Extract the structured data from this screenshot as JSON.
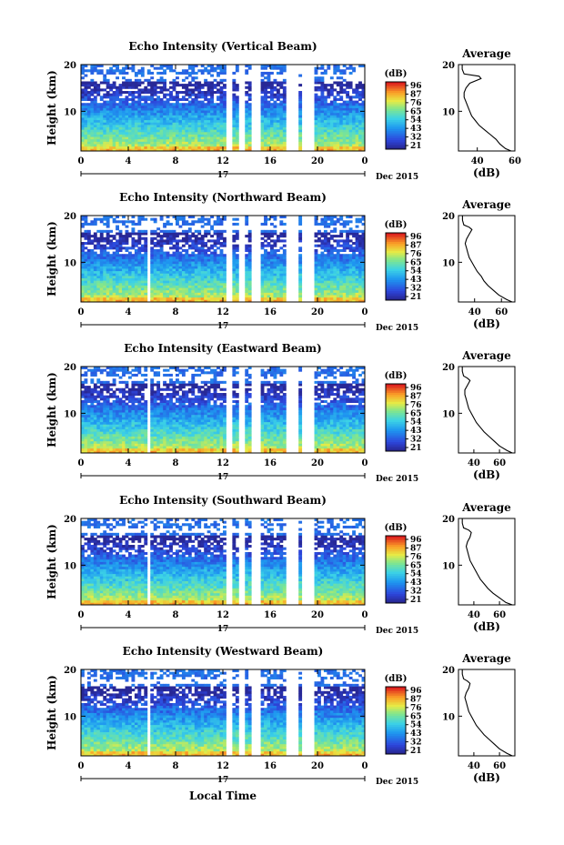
{
  "chart_data": [
    {
      "type": "heatmap",
      "title": "Echo Intensity (Vertical Beam)",
      "ylabel": "Height (km)",
      "xlim": [
        0,
        24
      ],
      "ylim": [
        1.5,
        20
      ],
      "xticks": [
        "0",
        "4",
        "8",
        "12",
        "16",
        "20",
        "0"
      ],
      "yticks": [
        "10",
        "20"
      ],
      "day_label": "17",
      "date_label": "Dec 2015",
      "colorbar": {
        "unit": "(dB)",
        "ticks": [
          "96",
          "87",
          "76",
          "65",
          "54",
          "43",
          "32",
          "21"
        ]
      },
      "gaps_hours": [
        [
          12.3,
          12.8
        ],
        [
          13.3,
          13.9
        ],
        [
          14.3,
          15.2
        ],
        [
          17.3,
          18.4
        ],
        [
          18.7,
          19.6
        ]
      ],
      "white_band_km": [
        17.0,
        17.7
      ],
      "profile": {
        "title": "Average",
        "xlabel": "(dB)",
        "xlim": [
          30,
          60
        ],
        "xticks": [
          "40",
          "60"
        ],
        "yticks": [
          "10",
          "20"
        ],
        "height_km": [
          1.5,
          2,
          3,
          4,
          5,
          6,
          7,
          8,
          9,
          10,
          11,
          12,
          13,
          14,
          15,
          16,
          17,
          17.5,
          18,
          19,
          20
        ],
        "db": [
          58,
          55,
          52,
          50,
          47,
          44,
          41,
          39,
          37,
          36,
          35,
          34,
          33,
          33,
          34,
          36,
          42,
          41,
          33,
          32,
          32
        ]
      }
    },
    {
      "type": "heatmap",
      "title": "Echo Intensity (Northward Beam)",
      "ylabel": "Height (km)",
      "xlim": [
        0,
        24
      ],
      "ylim": [
        1.5,
        20
      ],
      "xticks": [
        "0",
        "4",
        "8",
        "12",
        "16",
        "20",
        "0"
      ],
      "yticks": [
        "10",
        "20"
      ],
      "day_label": "17",
      "date_label": "Dec 2015",
      "colorbar": {
        "unit": "(dB)",
        "ticks": [
          "96",
          "87",
          "76",
          "65",
          "54",
          "43",
          "32",
          "21"
        ]
      },
      "gaps_hours": [
        [
          5.7,
          5.9
        ],
        [
          12.3,
          12.8
        ],
        [
          13.3,
          13.9
        ],
        [
          14.3,
          15.2
        ],
        [
          17.3,
          18.4
        ],
        [
          18.7,
          19.6
        ]
      ],
      "white_band_km": [
        17.0,
        17.7
      ],
      "profile": {
        "title": "Average",
        "xlabel": "(dB)",
        "xlim": [
          28,
          70
        ],
        "xticks": [
          "40",
          "60"
        ],
        "yticks": [
          "10",
          "20"
        ],
        "height_km": [
          1.5,
          2,
          3,
          4,
          5,
          6,
          7,
          8,
          9,
          10,
          11,
          12,
          13,
          14,
          15,
          16,
          17,
          17.5,
          18,
          19,
          20
        ],
        "db": [
          68,
          64,
          58,
          54,
          50,
          47,
          45,
          42,
          40,
          38,
          36,
          35,
          34,
          33,
          34,
          36,
          38,
          36,
          32,
          31,
          31
        ]
      }
    },
    {
      "type": "heatmap",
      "title": "Echo Intensity (Eastward Beam)",
      "ylabel": "Height (km)",
      "xlim": [
        0,
        24
      ],
      "ylim": [
        1.5,
        20
      ],
      "xticks": [
        "0",
        "4",
        "8",
        "12",
        "16",
        "20",
        "0"
      ],
      "yticks": [
        "10",
        "20"
      ],
      "day_label": "17",
      "date_label": "Dec 2015",
      "colorbar": {
        "unit": "(dB)",
        "ticks": [
          "96",
          "87",
          "76",
          "65",
          "54",
          "43",
          "32",
          "21"
        ]
      },
      "gaps_hours": [
        [
          5.7,
          5.9
        ],
        [
          12.3,
          12.8
        ],
        [
          13.3,
          13.9
        ],
        [
          14.3,
          15.2
        ],
        [
          17.3,
          18.4
        ],
        [
          18.7,
          19.6
        ]
      ],
      "white_band_km": [
        17.0,
        17.7
      ],
      "profile": {
        "title": "Average",
        "xlabel": "(dB)",
        "xlim": [
          28,
          72
        ],
        "xticks": [
          "40",
          "60"
        ],
        "yticks": [
          "10",
          "20"
        ],
        "height_km": [
          1.5,
          2,
          3,
          4,
          5,
          6,
          7,
          8,
          9,
          10,
          11,
          12,
          13,
          14,
          15,
          16,
          17,
          17.5,
          18,
          19,
          20
        ],
        "db": [
          70,
          66,
          60,
          56,
          52,
          48,
          45,
          42,
          40,
          38,
          36,
          35,
          34,
          33,
          33,
          35,
          37,
          35,
          32,
          31,
          31
        ]
      }
    },
    {
      "type": "heatmap",
      "title": "Echo Intensity (Southward Beam)",
      "ylabel": "Height (km)",
      "xlim": [
        0,
        24
      ],
      "ylim": [
        1.5,
        20
      ],
      "xticks": [
        "0",
        "4",
        "8",
        "12",
        "16",
        "20",
        "0"
      ],
      "yticks": [
        "10",
        "20"
      ],
      "day_label": "17",
      "date_label": "Dec 2015",
      "colorbar": {
        "unit": "(dB)",
        "ticks": [
          "96",
          "87",
          "76",
          "65",
          "54",
          "43",
          "32",
          "21"
        ]
      },
      "gaps_hours": [
        [
          5.7,
          5.9
        ],
        [
          12.3,
          12.8
        ],
        [
          13.3,
          13.9
        ],
        [
          14.3,
          15.2
        ],
        [
          17.3,
          18.4
        ],
        [
          18.7,
          19.6
        ]
      ],
      "white_band_km": [
        17.0,
        17.7
      ],
      "profile": {
        "title": "Average",
        "xlabel": "(dB)",
        "xlim": [
          28,
          72
        ],
        "xticks": [
          "40",
          "60"
        ],
        "yticks": [
          "10",
          "20"
        ],
        "height_km": [
          1.5,
          2,
          3,
          4,
          5,
          6,
          7,
          8,
          9,
          10,
          11,
          12,
          13,
          14,
          15,
          16,
          17,
          17.5,
          18,
          19,
          20
        ],
        "db": [
          70,
          65,
          60,
          55,
          51,
          48,
          45,
          43,
          41,
          39,
          37,
          36,
          35,
          34,
          35,
          37,
          38,
          36,
          32,
          31,
          31
        ]
      }
    },
    {
      "type": "heatmap",
      "title": "Echo Intensity (Westward Beam)",
      "ylabel": "Height (km)",
      "xlim": [
        0,
        24
      ],
      "ylim": [
        1.5,
        20
      ],
      "xticks": [
        "0",
        "4",
        "8",
        "12",
        "16",
        "20",
        "0"
      ],
      "yticks": [
        "10",
        "20"
      ],
      "day_label": "17",
      "date_label": "Dec 2015",
      "colorbar": {
        "unit": "(dB)",
        "ticks": [
          "96",
          "87",
          "76",
          "65",
          "54",
          "43",
          "32",
          "21"
        ]
      },
      "gaps_hours": [
        [
          5.7,
          5.9
        ],
        [
          12.3,
          12.8
        ],
        [
          13.3,
          13.9
        ],
        [
          14.3,
          15.2
        ],
        [
          17.3,
          18.4
        ],
        [
          18.7,
          19.6
        ]
      ],
      "white_band_km": [
        17.0,
        17.7
      ],
      "profile": {
        "title": "Average",
        "xlabel": "(dB)",
        "xlim": [
          28,
          72
        ],
        "xticks": [
          "40",
          "60"
        ],
        "yticks": [
          "10",
          "20"
        ],
        "height_km": [
          1.5,
          2,
          3,
          4,
          5,
          6,
          7,
          8,
          9,
          10,
          11,
          12,
          13,
          14,
          15,
          16,
          17,
          17.5,
          18,
          19,
          20
        ],
        "db": [
          70,
          66,
          60,
          56,
          52,
          48,
          45,
          42,
          40,
          38,
          36,
          35,
          34,
          33,
          34,
          36,
          37,
          35,
          32,
          31,
          31
        ]
      }
    }
  ],
  "footer": {
    "xlabel": "Local Time"
  }
}
